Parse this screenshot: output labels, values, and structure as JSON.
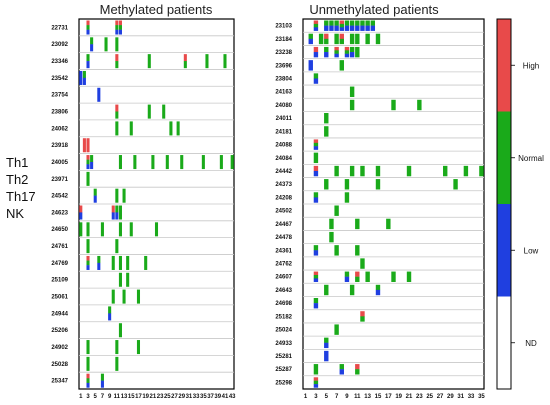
{
  "chart_data": {
    "type": "heatmap",
    "panels": [
      {
        "title": "Methylated patients",
        "xticks": [
          1,
          3,
          5,
          7,
          9,
          11,
          13,
          15,
          17,
          19,
          21,
          23,
          25,
          27,
          29,
          31,
          33,
          35,
          37,
          39,
          41,
          43
        ],
        "ncols": 43,
        "rows": [
          {
            "patient": "22731",
            "cells": [
              [
                3,
                "RGB"
              ],
              [
                11,
                "RGB"
              ],
              [
                12,
                "RGB"
              ]
            ]
          },
          {
            "patient": "23092",
            "cells": [
              [
                4,
                "GB"
              ],
              [
                8,
                "G"
              ],
              [
                11,
                "G"
              ]
            ]
          },
          {
            "patient": "23346",
            "cells": [
              [
                3,
                "GB"
              ],
              [
                11,
                "RG"
              ],
              [
                20,
                "G"
              ],
              [
                30,
                "RG"
              ],
              [
                36,
                "G"
              ],
              [
                41,
                "G"
              ]
            ]
          },
          {
            "patient": "23542",
            "cells": [
              [
                1,
                "B"
              ],
              [
                2,
                "GB"
              ]
            ]
          },
          {
            "patient": "23754",
            "cells": [
              [
                6,
                "B"
              ]
            ]
          },
          {
            "patient": "23806",
            "cells": [
              [
                11,
                "RG"
              ],
              [
                20,
                "G"
              ],
              [
                24,
                "G"
              ]
            ]
          },
          {
            "patient": "24062",
            "cells": [
              [
                11,
                "G"
              ],
              [
                15,
                "G"
              ],
              [
                26,
                "G"
              ],
              [
                28,
                "G"
              ]
            ]
          },
          {
            "patient": "23918",
            "cells": [
              [
                2,
                "R"
              ],
              [
                3,
                "R"
              ]
            ]
          },
          {
            "patient": "24005",
            "cells": [
              [
                3,
                "RGB"
              ],
              [
                4,
                "GB"
              ],
              [
                12,
                "G"
              ],
              [
                16,
                "G"
              ],
              [
                21,
                "G"
              ],
              [
                25,
                "G"
              ],
              [
                29,
                "G"
              ],
              [
                35,
                "G"
              ],
              [
                40,
                "G"
              ],
              [
                43,
                "G"
              ]
            ]
          },
          {
            "patient": "23971",
            "cells": [
              [
                3,
                "G"
              ]
            ]
          },
          {
            "patient": "24542",
            "cells": [
              [
                5,
                "GB"
              ],
              [
                11,
                "G"
              ],
              [
                13,
                "G"
              ]
            ]
          },
          {
            "patient": "24623",
            "cells": [
              [
                1,
                "RB"
              ],
              [
                10,
                "RB"
              ],
              [
                11,
                "GB"
              ],
              [
                12,
                "G"
              ]
            ]
          },
          {
            "patient": "24650",
            "cells": [
              [
                1,
                "G"
              ],
              [
                3,
                "G"
              ],
              [
                7,
                "G"
              ],
              [
                12,
                "G"
              ],
              [
                15,
                "G"
              ],
              [
                22,
                "G"
              ]
            ]
          },
          {
            "patient": "24761",
            "cells": [
              [
                3,
                "G"
              ],
              [
                11,
                "G"
              ]
            ]
          },
          {
            "patient": "24769",
            "cells": [
              [
                3,
                "RGB"
              ],
              [
                6,
                "GB"
              ],
              [
                10,
                "G"
              ],
              [
                12,
                "G"
              ],
              [
                14,
                "G"
              ],
              [
                19,
                "G"
              ]
            ]
          },
          {
            "patient": "25109",
            "cells": [
              [
                12,
                "G"
              ],
              [
                14,
                "G"
              ]
            ]
          },
          {
            "patient": "25061",
            "cells": [
              [
                10,
                "G"
              ],
              [
                13,
                "G"
              ],
              [
                17,
                "G"
              ]
            ]
          },
          {
            "patient": "24944",
            "cells": [
              [
                9,
                "GB"
              ]
            ]
          },
          {
            "patient": "25206",
            "cells": [
              [
                12,
                "G"
              ]
            ]
          },
          {
            "patient": "24902",
            "cells": [
              [
                3,
                "G"
              ],
              [
                11,
                "G"
              ],
              [
                17,
                "G"
              ]
            ]
          },
          {
            "patient": "25028",
            "cells": [
              [
                3,
                "G"
              ],
              [
                11,
                "G"
              ]
            ]
          },
          {
            "patient": "25347",
            "cells": [
              [
                3,
                "RGB"
              ],
              [
                7,
                "GB"
              ]
            ]
          }
        ]
      },
      {
        "title": "Unmethylated patients",
        "xticks": [
          1,
          3,
          5,
          7,
          9,
          11,
          13,
          15,
          17,
          19,
          21,
          23,
          25,
          27,
          29,
          31,
          33,
          35
        ],
        "ncols": 35,
        "rows": [
          {
            "patient": "23103",
            "cells": [
              [
                3,
                "RGB"
              ],
              [
                5,
                "GB"
              ],
              [
                6,
                "GB"
              ],
              [
                7,
                "GB"
              ],
              [
                8,
                "RGB"
              ],
              [
                9,
                "GB"
              ],
              [
                10,
                "GB"
              ],
              [
                11,
                "GB"
              ],
              [
                12,
                "GB"
              ],
              [
                13,
                "GB"
              ],
              [
                14,
                "GB"
              ]
            ]
          },
          {
            "patient": "23184",
            "cells": [
              [
                2,
                "GB"
              ],
              [
                4,
                "G"
              ],
              [
                5,
                "RG"
              ],
              [
                7,
                "G"
              ],
              [
                8,
                "RG"
              ],
              [
                10,
                "G"
              ],
              [
                11,
                "G"
              ],
              [
                13,
                "G"
              ],
              [
                15,
                "G"
              ]
            ]
          },
          {
            "patient": "23238",
            "cells": [
              [
                3,
                "RB"
              ],
              [
                5,
                "GB"
              ],
              [
                7,
                "RGB"
              ],
              [
                9,
                "RGB"
              ],
              [
                10,
                "GB"
              ],
              [
                11,
                "G"
              ]
            ]
          },
          {
            "patient": "23696",
            "cells": [
              [
                2,
                "B"
              ],
              [
                8,
                "G"
              ]
            ]
          },
          {
            "patient": "23804",
            "cells": [
              [
                3,
                "GB"
              ]
            ]
          },
          {
            "patient": "24163",
            "cells": [
              [
                10,
                "G"
              ]
            ]
          },
          {
            "patient": "24080",
            "cells": [
              [
                10,
                "G"
              ],
              [
                18,
                "G"
              ],
              [
                23,
                "G"
              ]
            ]
          },
          {
            "patient": "24011",
            "cells": [
              [
                5,
                "G"
              ]
            ]
          },
          {
            "patient": "24181",
            "cells": [
              [
                5,
                "G"
              ]
            ]
          },
          {
            "patient": "24088",
            "cells": [
              [
                3,
                "RGB"
              ]
            ]
          },
          {
            "patient": "24084",
            "cells": [
              [
                3,
                "G"
              ]
            ]
          },
          {
            "patient": "24442",
            "cells": [
              [
                3,
                "RB"
              ],
              [
                7,
                "G"
              ],
              [
                10,
                "G"
              ],
              [
                12,
                "G"
              ],
              [
                15,
                "G"
              ],
              [
                21,
                "G"
              ],
              [
                28,
                "G"
              ],
              [
                32,
                "G"
              ],
              [
                35,
                "G"
              ]
            ]
          },
          {
            "patient": "24373",
            "cells": [
              [
                5,
                "G"
              ],
              [
                9,
                "G"
              ],
              [
                15,
                "G"
              ],
              [
                30,
                "G"
              ]
            ]
          },
          {
            "patient": "24208",
            "cells": [
              [
                3,
                "GB"
              ],
              [
                9,
                "G"
              ]
            ]
          },
          {
            "patient": "24502",
            "cells": [
              [
                7,
                "G"
              ]
            ]
          },
          {
            "patient": "24467",
            "cells": [
              [
                6,
                "G"
              ],
              [
                11,
                "G"
              ],
              [
                17,
                "G"
              ]
            ]
          },
          {
            "patient": "24478",
            "cells": [
              [
                6,
                "G"
              ]
            ]
          },
          {
            "patient": "24361",
            "cells": [
              [
                3,
                "GB"
              ],
              [
                7,
                "G"
              ],
              [
                11,
                "G"
              ]
            ]
          },
          {
            "patient": "24762",
            "cells": [
              [
                12,
                "G"
              ]
            ]
          },
          {
            "patient": "24607",
            "cells": [
              [
                3,
                "RGB"
              ],
              [
                9,
                "GB"
              ],
              [
                11,
                "RG"
              ],
              [
                13,
                "G"
              ],
              [
                18,
                "G"
              ],
              [
                21,
                "G"
              ]
            ]
          },
          {
            "patient": "24643",
            "cells": [
              [
                5,
                "G"
              ],
              [
                10,
                "G"
              ],
              [
                15,
                "GB"
              ]
            ]
          },
          {
            "patient": "24698",
            "cells": [
              [
                3,
                "GB"
              ]
            ]
          },
          {
            "patient": "25182",
            "cells": [
              [
                12,
                "RG"
              ]
            ]
          },
          {
            "patient": "25024",
            "cells": [
              [
                7,
                "G"
              ]
            ]
          },
          {
            "patient": "24933",
            "cells": [
              [
                5,
                "GB"
              ]
            ]
          },
          {
            "patient": "25281",
            "cells": [
              [
                5,
                "B"
              ]
            ]
          },
          {
            "patient": "25287",
            "cells": [
              [
                3,
                "G"
              ],
              [
                8,
                "GB"
              ],
              [
                11,
                "RG"
              ]
            ]
          },
          {
            "patient": "25298",
            "cells": [
              [
                3,
                "RGB"
              ]
            ]
          }
        ]
      }
    ],
    "cell_levels": {
      "R": "High",
      "G": "Normal",
      "B": "Low"
    },
    "legend": [
      {
        "label": "High",
        "color": "#e84a4a"
      },
      {
        "label": "Normal",
        "color": "#1aaa1a"
      },
      {
        "label": "Low",
        "color": "#1f3fe0"
      },
      {
        "label": "ND",
        "color": "#ffffff"
      }
    ],
    "row_group_labels": [
      "Th1",
      "Th2",
      "Th17",
      "NK"
    ]
  }
}
